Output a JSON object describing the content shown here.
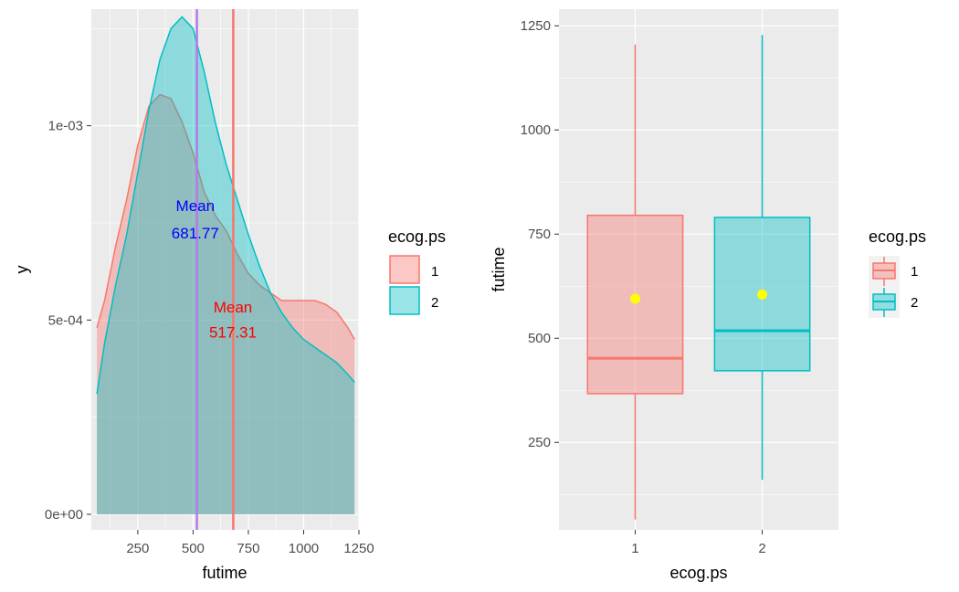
{
  "chart_data": [
    {
      "type": "area",
      "subtype": "density",
      "title": "",
      "xlabel": "futime",
      "ylabel": "y",
      "xlim": [
        40,
        1250
      ],
      "ylim": [
        -4e-05,
        0.0013
      ],
      "x_ticks": [
        250,
        500,
        750,
        1000,
        1250
      ],
      "x_tick_labels": [
        "250",
        "500",
        "750",
        "1000",
        "1250"
      ],
      "y_ticks": [
        0,
        0.0005,
        0.001
      ],
      "y_tick_labels": [
        "0e+00",
        "5e-04",
        "1e-03"
      ],
      "grid": true,
      "legend": {
        "title": "ecog.ps",
        "position": "right",
        "entries": [
          "1",
          "2"
        ]
      },
      "series": [
        {
          "name": "1",
          "color": "#F8766D",
          "x": [
            65,
            100,
            150,
            200,
            250,
            300,
            350,
            400,
            450,
            500,
            550,
            600,
            650,
            700,
            750,
            800,
            850,
            900,
            950,
            1000,
            1050,
            1100,
            1150,
            1200,
            1230
          ],
          "values": [
            0.00048,
            0.00055,
            0.00069,
            0.00081,
            0.00095,
            0.00105,
            0.00108,
            0.00107,
            0.00101,
            0.00093,
            0.00083,
            0.00077,
            0.00073,
            0.00067,
            0.00062,
            0.00059,
            0.00057,
            0.00055,
            0.00055,
            0.00055,
            0.00055,
            0.00054,
            0.00052,
            0.00048,
            0.00045
          ]
        },
        {
          "name": "2",
          "color": "#00BFC4",
          "x": [
            65,
            100,
            150,
            200,
            250,
            300,
            350,
            400,
            450,
            500,
            550,
            600,
            650,
            700,
            750,
            800,
            850,
            900,
            950,
            1000,
            1050,
            1100,
            1150,
            1200,
            1230
          ],
          "values": [
            0.00031,
            0.00044,
            0.00059,
            0.00072,
            0.00088,
            0.00104,
            0.00117,
            0.00125,
            0.00128,
            0.00125,
            0.00114,
            0.00101,
            0.0009,
            0.00081,
            0.00072,
            0.00064,
            0.00057,
            0.00052,
            0.00048,
            0.00045,
            0.00043,
            0.00041,
            0.00039,
            0.00036,
            0.00034
          ]
        }
      ],
      "vlines": [
        {
          "x": 517.31,
          "color": "#B07CE8"
        },
        {
          "x": 681.77,
          "color": "#F8766D"
        }
      ],
      "annotations": [
        {
          "text": "Mean",
          "x": 510,
          "y": 0.00078,
          "color": "#0000FF"
        },
        {
          "text": "681.77",
          "x": 510,
          "y": 0.00071,
          "color": "#0000FF"
        },
        {
          "text": "Mean",
          "x": 680,
          "y": 0.00052,
          "color": "#FF0000"
        },
        {
          "text": "517.31",
          "x": 680,
          "y": 0.000455,
          "color": "#FF0000"
        }
      ]
    },
    {
      "type": "box",
      "title": "",
      "xlabel": "ecog.ps",
      "ylabel": "futime",
      "categories": [
        "1",
        "2"
      ],
      "ylim": [
        40,
        1290
      ],
      "y_ticks": [
        250,
        500,
        750,
        1000,
        1250
      ],
      "y_tick_labels": [
        "250",
        "500",
        "750",
        "1000",
        "1250"
      ],
      "grid": true,
      "legend": {
        "title": "ecog.ps",
        "position": "right",
        "entries": [
          "1",
          "2"
        ]
      },
      "series": [
        {
          "name": "1",
          "color": "#F8766D",
          "min": 65,
          "q1": 367,
          "median": 452,
          "q3": 795,
          "max": 1205,
          "mean": 595
        },
        {
          "name": "2",
          "color": "#00BFC4",
          "min": 160,
          "q1": 422,
          "median": 518,
          "q3": 790,
          "max": 1228,
          "mean": 605
        }
      ],
      "mean_point_color": "#FFFF00"
    }
  ],
  "colors": {
    "panel_background": "#EBEBEB",
    "grid": "#FFFFFF",
    "axis_text": "#4D4D4D",
    "axis_title": "#000000"
  }
}
